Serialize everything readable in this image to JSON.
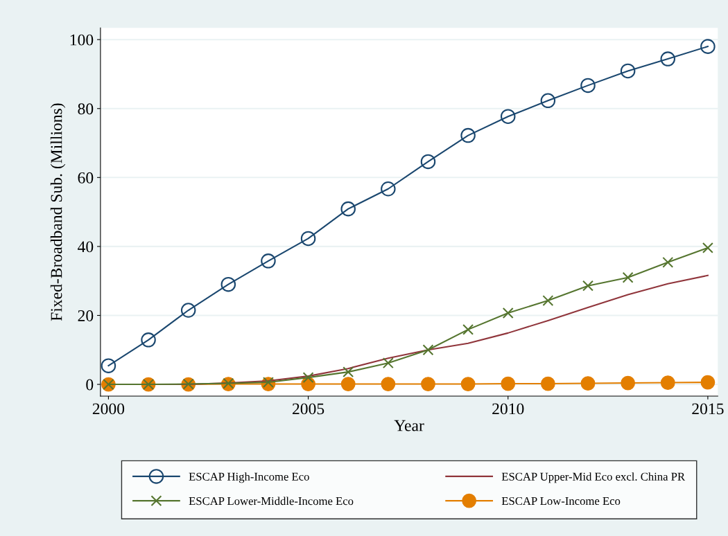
{
  "chart_data": {
    "type": "line",
    "xlabel": "Year",
    "ylabel": "Fixed-Broadband Sub. (Millions)",
    "x": [
      2000,
      2001,
      2002,
      2003,
      2004,
      2005,
      2006,
      2007,
      2008,
      2009,
      2010,
      2011,
      2012,
      2013,
      2014,
      2015
    ],
    "series": [
      {
        "name": "ESCAP High-Income Eco",
        "color": "#1a476f",
        "marker": "circle",
        "values": [
          5.4,
          12.9,
          21.5,
          29,
          35.8,
          42.3,
          50.9,
          56.7,
          64.6,
          72.2,
          77.7,
          82.3,
          86.7,
          90.9,
          94.4,
          98
        ]
      },
      {
        "name": "ESCAP Upper-Mid Eco excl. China PR",
        "color": "#90353b",
        "marker": "none",
        "values": [
          0,
          0,
          0,
          0.4,
          1,
          2.4,
          4.6,
          7.6,
          10,
          11.9,
          14.9,
          18.5,
          22.3,
          26,
          29.2,
          31.6
        ]
      },
      {
        "name": "ESCAP Lower-Middle-Income Eco",
        "color": "#55752f",
        "marker": "cross",
        "values": [
          0,
          0,
          0.1,
          0.3,
          0.6,
          2,
          3.6,
          6.2,
          10,
          15.9,
          20.7,
          24.3,
          28.6,
          31,
          35.4,
          39.6
        ]
      },
      {
        "name": "ESCAP Low-Income Eco",
        "color": "#e37e00",
        "marker": "filled circle",
        "values": [
          0,
          0,
          0,
          0.1,
          0.1,
          0.1,
          0.1,
          0.1,
          0.1,
          0.1,
          0.2,
          0.2,
          0.3,
          0.4,
          0.5,
          0.6
        ]
      }
    ],
    "xlim": [
      1999.8,
      2015.25
    ],
    "xticks": [
      2000,
      2005,
      2010,
      2015
    ],
    "ylim": [
      -3.4,
      103.4
    ],
    "yticks": [
      0,
      20,
      40,
      60,
      80,
      100
    ],
    "grid": "y",
    "legend": "bottom",
    "line_style": "solid"
  }
}
